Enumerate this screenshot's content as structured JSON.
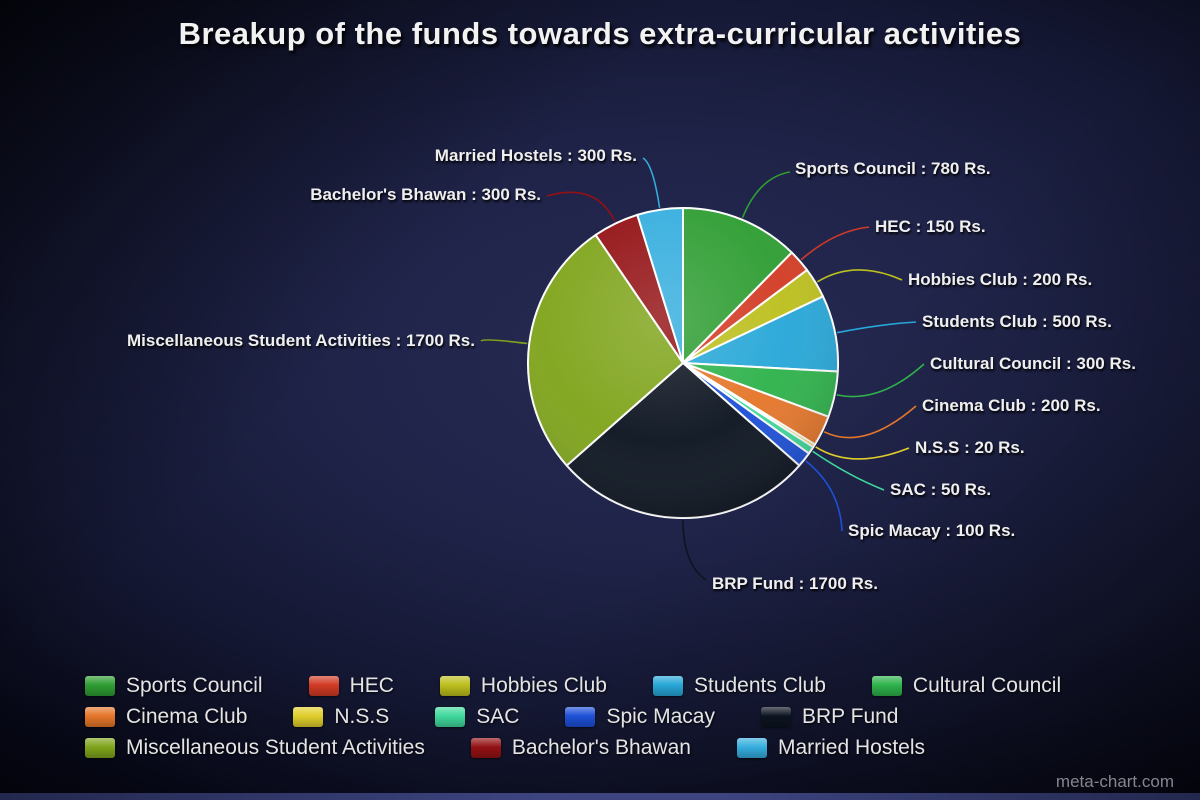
{
  "title": "Breakup of the funds towards extra-curricular activities",
  "watermark": "meta-chart.com",
  "chart_data": {
    "type": "pie",
    "title": "Breakup of the funds towards extra-curricular activities",
    "value_unit": "Rs.",
    "total": 6300,
    "legend_position": "bottom",
    "start_angle": "top",
    "direction": "clockwise",
    "slices": [
      {
        "label": "Sports Council",
        "value": 780,
        "color": "#2e9d32",
        "label_text": "Sports Council : 780 Rs."
      },
      {
        "label": "HEC",
        "value": 150,
        "color": "#d23b24",
        "label_text": "HEC : 150 Rs."
      },
      {
        "label": "Hobbies Club",
        "value": 200,
        "color": "#bcbf1d",
        "label_text": "Hobbies Club : 200 Rs."
      },
      {
        "label": "Students Club",
        "value": 500,
        "color": "#27a7d8",
        "label_text": "Students Club : 500 Rs."
      },
      {
        "label": "Cultural Council",
        "value": 300,
        "color": "#2eb24b",
        "label_text": "Cultural Council : 300 Rs."
      },
      {
        "label": "Cinema Club",
        "value": 200,
        "color": "#e5762a",
        "label_text": "Cinema Club : 200 Rs."
      },
      {
        "label": "N.S.S",
        "value": 20,
        "color": "#e0ce2b",
        "label_text": "N.S.S : 20 Rs."
      },
      {
        "label": "SAC",
        "value": 50,
        "color": "#3fd99c",
        "label_text": "SAC : 50 Rs."
      },
      {
        "label": "Spic Macay",
        "value": 100,
        "color": "#1d50d8",
        "label_text": "Spic Macay : 100 Rs."
      },
      {
        "label": "BRP Fund",
        "value": 1700,
        "color": "#0c1420",
        "label_text": "BRP Fund : 1700 Rs."
      },
      {
        "label": "Miscellaneous Student Activities",
        "value": 1700,
        "color": "#7fa41b",
        "label_text": "Miscellaneous Student Activities : 1700 Rs."
      },
      {
        "label": "Bachelor's Bhawan",
        "value": 300,
        "color": "#931114",
        "label_text": "Bachelor's Bhawan : 300 Rs."
      },
      {
        "label": "Married Hostels",
        "value": 300,
        "color": "#35aede",
        "label_text": "Married Hostels : 300 Rs."
      }
    ]
  }
}
